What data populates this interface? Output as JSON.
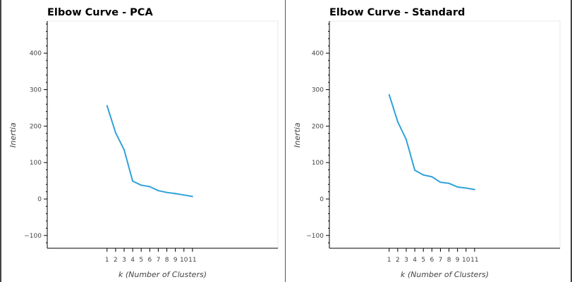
{
  "chart_data": [
    {
      "type": "line",
      "title": "Elbow Curve - PCA",
      "xlabel": "k (Number of Clusters)",
      "ylabel": "Inertia",
      "x": [
        1,
        2,
        3,
        4,
        5,
        6,
        7,
        8,
        9,
        10,
        11
      ],
      "x_tick_labels": [
        "1",
        "2",
        "3",
        "4",
        "5",
        "6",
        "7",
        "8",
        "9",
        "10",
        "11"
      ],
      "series": [
        {
          "values": [
            256,
            182,
            135,
            49,
            38,
            34,
            23,
            18,
            15,
            11,
            7
          ]
        }
      ],
      "xlim": [
        -6,
        21
      ],
      "ylim": [
        -135,
        488
      ],
      "y_ticks": [
        -100,
        0,
        100,
        200,
        300,
        400
      ],
      "y_tick_labels": [
        "−100",
        "0",
        "100",
        "200",
        "300",
        "400"
      ],
      "line_color": "#30a2da",
      "grid": false
    },
    {
      "type": "line",
      "title": "Elbow Curve - Standard",
      "xlabel": "k (Number of Clusters)",
      "ylabel": "Inertia",
      "x": [
        1,
        2,
        3,
        4,
        5,
        6,
        7,
        8,
        9,
        10,
        11
      ],
      "x_tick_labels": [
        "1",
        "2",
        "3",
        "4",
        "5",
        "6",
        "7",
        "8",
        "9",
        "10",
        "11"
      ],
      "series": [
        {
          "values": [
            286,
            212,
            163,
            79,
            66,
            61,
            46,
            43,
            33,
            30,
            26
          ]
        }
      ],
      "xlim": [
        -6,
        21
      ],
      "ylim": [
        -135,
        488
      ],
      "y_ticks": [
        -100,
        0,
        100,
        200,
        300,
        400
      ],
      "y_tick_labels": [
        "−100",
        "0",
        "100",
        "200",
        "300",
        "400"
      ],
      "line_color": "#30a2da",
      "grid": false
    }
  ]
}
